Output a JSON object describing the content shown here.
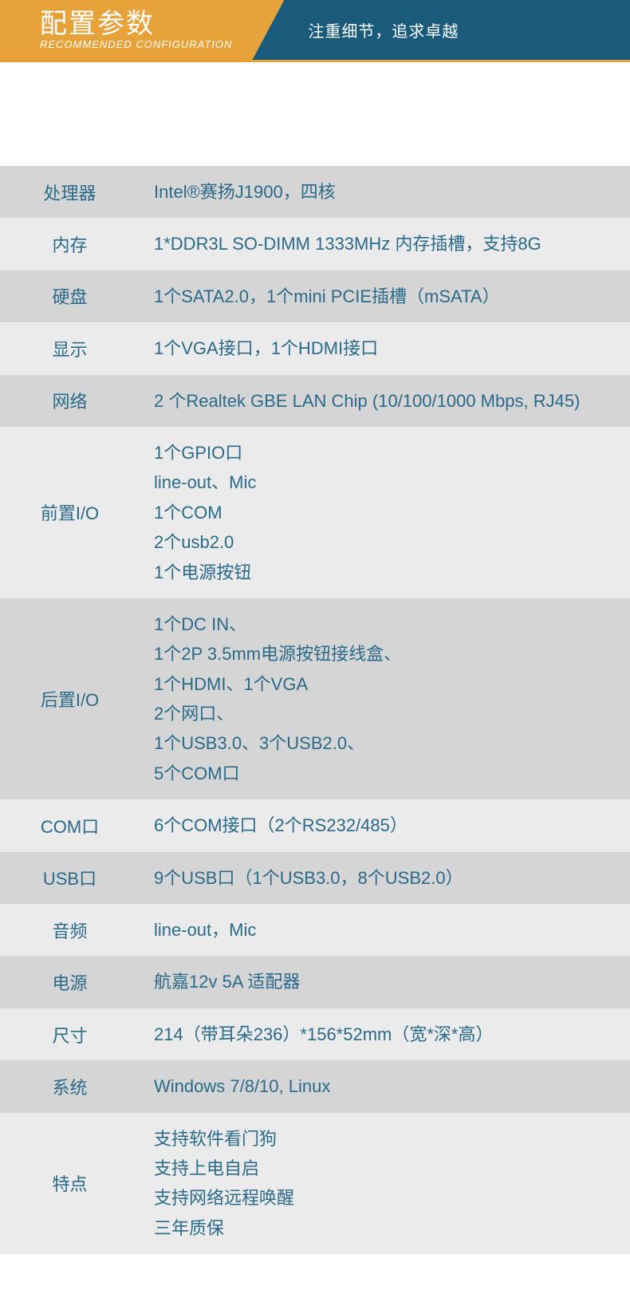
{
  "header": {
    "title": "配置参数",
    "subtitle": "RECOMMENDED CONFIGURATION",
    "tagline": "注重细节，追求卓越",
    "banner_bg": "#e8a23a",
    "strip_bg": "#1a5a7a",
    "text_color": "#ffffff"
  },
  "table": {
    "row_light_bg": "#ebebeb",
    "row_dark_bg": "#d5d5d5",
    "text_color": "#2a6a8a",
    "label_fontsize": 22,
    "value_fontsize": 22,
    "label_col_width": 175,
    "rows": [
      {
        "label": "处理器",
        "value": "Intel®赛扬J1900，四核",
        "shade": "dark"
      },
      {
        "label": "内存",
        "value": "1*DDR3L SO-DIMM 1333MHz 内存插槽，支持8G",
        "shade": "light"
      },
      {
        "label": "硬盘",
        "value": "1个SATA2.0，1个mini PCIE插槽（mSATA）",
        "shade": "dark"
      },
      {
        "label": "显示",
        "value": "1个VGA接口，1个HDMI接口",
        "shade": "light"
      },
      {
        "label": "网络",
        "value": "2 个Realtek GBE LAN Chip (10/100/1000 Mbps, RJ45)",
        "shade": "dark"
      },
      {
        "label": "前置I/O",
        "value": "1个GPIO口\nline-out、Mic\n1个COM\n2个usb2.0\n1个电源按钮",
        "shade": "light"
      },
      {
        "label": "后置I/O",
        "value": "1个DC IN、\n1个2P 3.5mm电源按钮接线盒、\n1个HDMI、1个VGA\n2个网口、\n1个USB3.0、3个USB2.0、\n5个COM口",
        "shade": "dark"
      },
      {
        "label": "COM口",
        "value": "6个COM接口（2个RS232/485）",
        "shade": "light"
      },
      {
        "label": "USB口",
        "value": "9个USB口（1个USB3.0，8个USB2.0）",
        "shade": "dark"
      },
      {
        "label": "音频",
        "value": "line-out，Mic",
        "shade": "light"
      },
      {
        "label": "电源",
        "value": "航嘉12v 5A 适配器",
        "shade": "dark"
      },
      {
        "label": "尺寸",
        "value": "214（带耳朵236）*156*52mm（宽*深*高）",
        "shade": "light"
      },
      {
        "label": "系统",
        "value": "Windows 7/8/10, Linux",
        "shade": "dark"
      },
      {
        "label": "特点",
        "value": "支持软件看门狗\n支持上电自启\n支持网络远程唤醒\n三年质保",
        "shade": "light"
      }
    ]
  }
}
